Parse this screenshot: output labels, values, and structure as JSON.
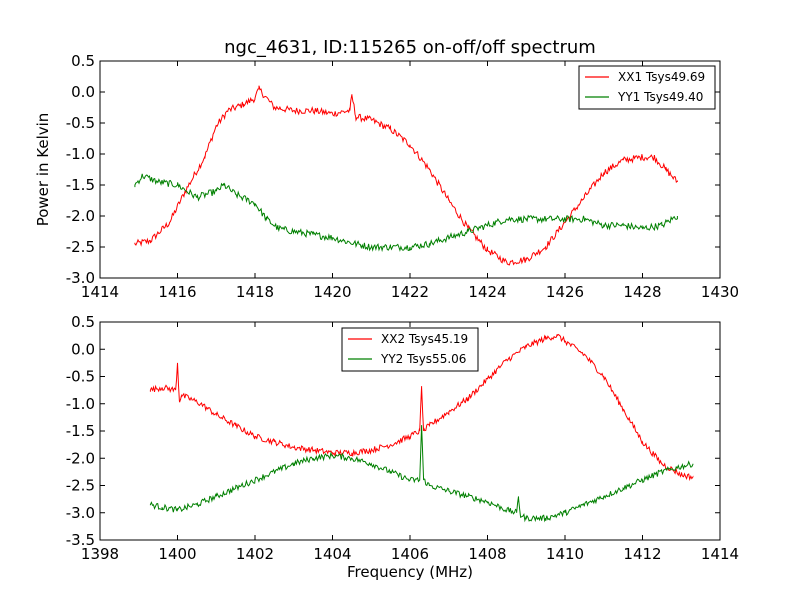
{
  "title": "ngc_4631, ID:115265 on-off/off spectrum",
  "colors": {
    "xx": "#ff0000",
    "yy": "#008000",
    "frame": "#000000",
    "background": "#ffffff"
  },
  "chart_data": [
    {
      "type": "line",
      "title": "ngc_4631, ID:115265 on-off/off spectrum",
      "xlabel": "",
      "ylabel": "Power in Kelvin",
      "xlim": [
        1414,
        1430
      ],
      "ylim": [
        -3.0,
        0.5
      ],
      "xticks": [
        "1414",
        "1416",
        "1418",
        "1420",
        "1422",
        "1424",
        "1426",
        "1428",
        "1430"
      ],
      "yticks": [
        "0.5",
        "0.0",
        "-0.5",
        "-1.0",
        "-1.5",
        "-2.0",
        "-2.5",
        "-3.0"
      ],
      "grid": false,
      "legend_position": "top-right",
      "series": [
        {
          "name": "XX1 Tsys49.69",
          "color": "#ff0000",
          "x": [
            1414.9,
            1415.3,
            1415.8,
            1416.2,
            1416.7,
            1417.0,
            1417.3,
            1417.7,
            1418.0,
            1418.1,
            1418.5,
            1419.0,
            1419.5,
            1420.0,
            1420.45,
            1420.5,
            1420.6,
            1421.0,
            1421.5,
            1422.0,
            1422.5,
            1423.0,
            1423.5,
            1424.0,
            1424.5,
            1425.0,
            1425.5,
            1426.0,
            1426.5,
            1427.0,
            1427.5,
            1428.0,
            1428.3,
            1428.6,
            1428.9
          ],
          "y": [
            -2.45,
            -2.4,
            -2.1,
            -1.6,
            -1.05,
            -0.55,
            -0.3,
            -0.2,
            -0.1,
            0.05,
            -0.25,
            -0.3,
            -0.3,
            -0.35,
            -0.3,
            -0.05,
            -0.4,
            -0.45,
            -0.6,
            -0.85,
            -1.25,
            -1.75,
            -2.2,
            -2.55,
            -2.75,
            -2.7,
            -2.5,
            -2.1,
            -1.7,
            -1.3,
            -1.1,
            -1.05,
            -1.05,
            -1.25,
            -1.45
          ]
        },
        {
          "name": "YY1 Tsys49.40",
          "color": "#008000",
          "x": [
            1414.9,
            1415.1,
            1415.5,
            1416.0,
            1416.5,
            1417.0,
            1417.2,
            1417.5,
            1418.0,
            1418.3,
            1418.6,
            1419.0,
            1419.5,
            1420.0,
            1420.3,
            1420.6,
            1421.0,
            1421.5,
            1422.0,
            1422.5,
            1423.0,
            1423.5,
            1424.0,
            1424.5,
            1425.0,
            1425.5,
            1426.0,
            1426.5,
            1427.0,
            1427.5,
            1428.0,
            1428.5,
            1428.9
          ],
          "y": [
            -1.5,
            -1.35,
            -1.45,
            -1.5,
            -1.7,
            -1.6,
            -1.5,
            -1.65,
            -1.8,
            -2.05,
            -2.2,
            -2.25,
            -2.3,
            -2.35,
            -2.4,
            -2.45,
            -2.5,
            -2.5,
            -2.5,
            -2.45,
            -2.35,
            -2.25,
            -2.15,
            -2.05,
            -2.05,
            -2.05,
            -2.05,
            -2.05,
            -2.15,
            -2.15,
            -2.2,
            -2.15,
            -2.0
          ]
        }
      ]
    },
    {
      "type": "line",
      "title": "",
      "xlabel": "Frequency (MHz)",
      "ylabel": "",
      "xlim": [
        1398,
        1414
      ],
      "ylim": [
        -3.5,
        0.5
      ],
      "xticks": [
        "1398",
        "1400",
        "1402",
        "1404",
        "1406",
        "1408",
        "1410",
        "1412",
        "1414"
      ],
      "yticks": [
        "0.5",
        "0.0",
        "-0.5",
        "-1.0",
        "-1.5",
        "-2.0",
        "-2.5",
        "-3.0",
        "-3.5"
      ],
      "grid": false,
      "legend_position": "top-center",
      "series": [
        {
          "name": "XX2 Tsys45.19",
          "color": "#ff0000",
          "x": [
            1399.3,
            1399.6,
            1399.95,
            1400.0,
            1400.05,
            1400.1,
            1400.3,
            1400.6,
            1401.0,
            1401.5,
            1402.0,
            1402.5,
            1403.0,
            1403.5,
            1404.0,
            1404.5,
            1405.0,
            1405.5,
            1406.0,
            1406.25,
            1406.3,
            1406.35,
            1406.5,
            1407.0,
            1407.5,
            1408.0,
            1408.5,
            1409.0,
            1409.5,
            1409.8,
            1410.0,
            1410.5,
            1411.0,
            1411.5,
            1412.0,
            1412.5,
            1413.0,
            1413.3
          ],
          "y": [
            -0.75,
            -0.7,
            -0.75,
            -0.25,
            -0.95,
            -0.85,
            -0.9,
            -1.0,
            -1.2,
            -1.4,
            -1.6,
            -1.7,
            -1.8,
            -1.85,
            -1.9,
            -1.9,
            -1.85,
            -1.75,
            -1.6,
            -1.5,
            -0.7,
            -1.5,
            -1.4,
            -1.15,
            -0.9,
            -0.55,
            -0.2,
            0.05,
            0.2,
            0.25,
            0.15,
            -0.1,
            -0.5,
            -1.1,
            -1.7,
            -2.1,
            -2.3,
            -2.35
          ]
        },
        {
          "name": "YY2 Tsys55.06",
          "color": "#008000",
          "x": [
            1399.3,
            1399.6,
            1400.0,
            1400.5,
            1401.0,
            1401.5,
            1402.0,
            1402.5,
            1403.0,
            1403.5,
            1404.0,
            1404.5,
            1405.0,
            1405.5,
            1406.0,
            1406.25,
            1406.3,
            1406.35,
            1406.5,
            1407.0,
            1407.5,
            1408.0,
            1408.5,
            1408.75,
            1408.8,
            1408.85,
            1409.0,
            1409.5,
            1410.0,
            1410.5,
            1411.0,
            1411.5,
            1412.0,
            1412.5,
            1413.0,
            1413.3
          ],
          "y": [
            -2.85,
            -2.9,
            -2.95,
            -2.85,
            -2.7,
            -2.55,
            -2.4,
            -2.25,
            -2.1,
            -2.0,
            -1.95,
            -2.0,
            -2.1,
            -2.25,
            -2.4,
            -2.4,
            -1.4,
            -2.4,
            -2.5,
            -2.6,
            -2.7,
            -2.8,
            -2.95,
            -3.0,
            -2.7,
            -3.05,
            -3.1,
            -3.1,
            -3.0,
            -2.85,
            -2.7,
            -2.55,
            -2.4,
            -2.25,
            -2.15,
            -2.1
          ]
        }
      ]
    }
  ]
}
